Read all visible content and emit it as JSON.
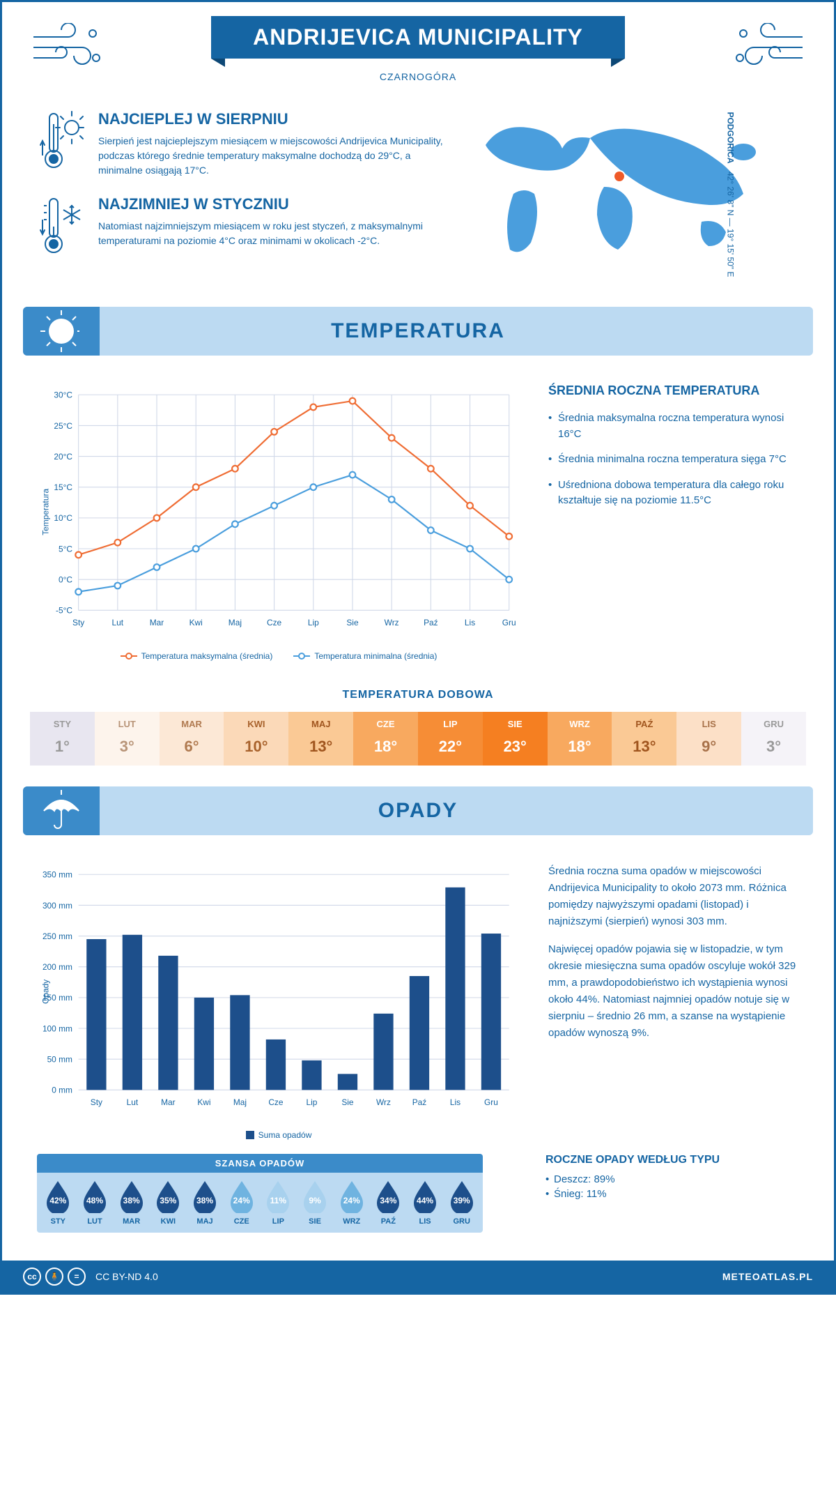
{
  "header": {
    "title": "ANDRIJEVICA MUNICIPALITY",
    "subtitle": "CZARNOGÓRA",
    "coords_city": "PODGORICA",
    "coords": "42° 26' 8\" N — 19° 15' 50\" E"
  },
  "colors": {
    "brand": "#1565a3",
    "banner_bg": "#bcdaf2",
    "banner_icon_bg": "#3b8bc9",
    "line_max": "#ef6c33",
    "line_min": "#4a9edd",
    "bar_fill": "#1d4f8b",
    "grid": "#d0d8e8"
  },
  "info": {
    "hot": {
      "title": "NAJCIEPLEJ W SIERPNIU",
      "text": "Sierpień jest najcieplejszym miesiącem w miejscowości Andrijevica Municipality, podczas którego średnie temperatury maksymalne dochodzą do 29°C, a minimalne osiągają 17°C."
    },
    "cold": {
      "title": "NAJZIMNIEJ W STYCZNIU",
      "text": "Natomiast najzimniejszym miesiącem w roku jest styczeń, z maksymalnymi temperaturami na poziomie 4°C oraz minimami w okolicach -2°C."
    }
  },
  "temp_section": {
    "banner": "TEMPERATURA",
    "months": [
      "Sty",
      "Lut",
      "Mar",
      "Kwi",
      "Maj",
      "Cze",
      "Lip",
      "Sie",
      "Wrz",
      "Paź",
      "Lis",
      "Gru"
    ],
    "y_label": "Temperatura",
    "y_ticks": [
      -5,
      0,
      5,
      10,
      15,
      20,
      25,
      30
    ],
    "y_tick_labels": [
      "-5°C",
      "0°C",
      "5°C",
      "10°C",
      "15°C",
      "20°C",
      "25°C",
      "30°C"
    ],
    "series_max": [
      4,
      6,
      10,
      15,
      18,
      24,
      28,
      29,
      23,
      18,
      12,
      7
    ],
    "series_min": [
      -2,
      -1,
      2,
      5,
      9,
      12,
      15,
      17,
      13,
      8,
      5,
      0
    ],
    "legend_max": "Temperatura maksymalna (średnia)",
    "legend_min": "Temperatura minimalna (średnia)",
    "side_title": "ŚREDNIA ROCZNA TEMPERATURA",
    "bullets": [
      "Średnia maksymalna roczna temperatura wynosi 16°C",
      "Średnia minimalna roczna temperatura sięga 7°C",
      "Uśredniona dobowa temperatura dla całego roku kształtuje się na poziomie 11.5°C"
    ],
    "daily_title": "TEMPERATURA DOBOWA",
    "daily_months": [
      "STY",
      "LUT",
      "MAR",
      "KWI",
      "MAJ",
      "CZE",
      "LIP",
      "SIE",
      "WRZ",
      "PAŹ",
      "LIS",
      "GRU"
    ],
    "daily_values": [
      "1°",
      "3°",
      "6°",
      "10°",
      "13°",
      "18°",
      "22°",
      "23°",
      "18°",
      "13°",
      "9°",
      "3°"
    ],
    "daily_colors": [
      "#e8e6f0",
      "#fdf4ec",
      "#fce8d6",
      "#fbd9b8",
      "#fac995",
      "#f8a95f",
      "#f68d36",
      "#f57f21",
      "#f8a95f",
      "#fac995",
      "#fce0c7",
      "#f5f3f8"
    ],
    "daily_text_colors": [
      "#999",
      "#b89478",
      "#b07a50",
      "#a8622c",
      "#a0551e",
      "#fff",
      "#fff",
      "#fff",
      "#fff",
      "#a0551e",
      "#a8724a",
      "#999"
    ]
  },
  "precip_section": {
    "banner": "OPADY",
    "months": [
      "Sty",
      "Lut",
      "Mar",
      "Kwi",
      "Maj",
      "Cze",
      "Lip",
      "Sie",
      "Wrz",
      "Paź",
      "Lis",
      "Gru"
    ],
    "y_label": "Opady",
    "y_ticks": [
      0,
      50,
      100,
      150,
      200,
      250,
      300,
      350
    ],
    "y_tick_labels": [
      "0 mm",
      "50 mm",
      "100 mm",
      "150 mm",
      "200 mm",
      "250 mm",
      "300 mm",
      "350 mm"
    ],
    "values": [
      245,
      252,
      218,
      150,
      154,
      82,
      48,
      26,
      124,
      185,
      329,
      254
    ],
    "legend": "Suma opadów",
    "text1": "Średnia roczna suma opadów w miejscowości Andrijevica Municipality to około 2073 mm. Różnica pomiędzy najwyższymi opadami (listopad) i najniższymi (sierpień) wynosi 303 mm.",
    "text2": "Najwięcej opadów pojawia się w listopadzie, w tym okresie miesięczna suma opadów oscyluje wokół 329 mm, a prawdopodobieństwo ich wystąpienia wynosi około 44%. Natomiast najmniej opadów notuje się w sierpniu – średnio 26 mm, a szanse na wystąpienie opadów wynoszą 9%.",
    "chance_title": "SZANSA OPADÓW",
    "chance_months": [
      "STY",
      "LUT",
      "MAR",
      "KWI",
      "MAJ",
      "CZE",
      "LIP",
      "SIE",
      "WRZ",
      "PAŹ",
      "LIS",
      "GRU"
    ],
    "chance_values": [
      "42%",
      "48%",
      "38%",
      "35%",
      "38%",
      "24%",
      "11%",
      "9%",
      "24%",
      "34%",
      "44%",
      "39%"
    ],
    "chance_colors": [
      "#1d4f8b",
      "#1d4f8b",
      "#1d4f8b",
      "#1d4f8b",
      "#1d4f8b",
      "#6fb3e0",
      "#a8d1ee",
      "#a8d1ee",
      "#6fb3e0",
      "#1d4f8b",
      "#1d4f8b",
      "#1d4f8b"
    ],
    "type_title": "ROCZNE OPADY WEDŁUG TYPU",
    "types": [
      "Deszcz: 89%",
      "Śnieg: 11%"
    ]
  },
  "footer": {
    "license": "CC BY-ND 4.0",
    "site": "METEOATLAS.PL"
  }
}
